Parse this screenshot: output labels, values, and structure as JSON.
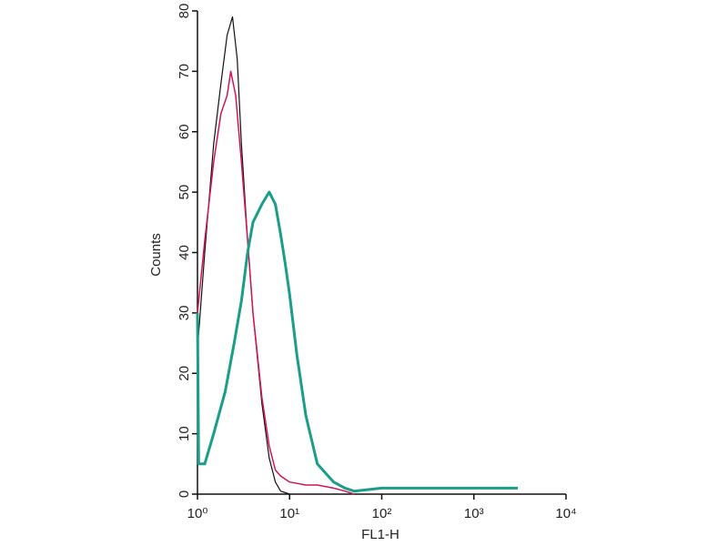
{
  "chart_data": {
    "type": "line",
    "x_label": "FL1-H",
    "y_label": "Counts",
    "xscale": "log",
    "xlim": [
      1,
      10000
    ],
    "xticks": [
      {
        "value": 1,
        "label": "10⁰"
      },
      {
        "value": 10,
        "label": "10¹"
      },
      {
        "value": 100,
        "label": "10²"
      },
      {
        "value": 1000,
        "label": "10³"
      },
      {
        "value": 10000,
        "label": "10⁴"
      }
    ],
    "ylim": [
      0,
      80
    ],
    "yticks": [
      0,
      10,
      20,
      30,
      40,
      50,
      60,
      70,
      80
    ],
    "series": [
      {
        "color": "#111111",
        "width": 1.2,
        "x": [
          1,
          1.2,
          1.5,
          1.8,
          2.1,
          2.4,
          2.7,
          3,
          3.5,
          4,
          5,
          6,
          7,
          8,
          10
        ],
        "values": [
          24,
          40,
          58,
          68,
          76,
          79,
          72,
          58,
          42,
          30,
          15,
          6,
          2,
          0.5,
          0
        ]
      },
      {
        "color": "#d4145a",
        "width": 1.5,
        "x": [
          1,
          1.2,
          1.5,
          1.8,
          2.1,
          2.3,
          2.6,
          3,
          3.5,
          4,
          5,
          6,
          7,
          8,
          10,
          15,
          20,
          30,
          40,
          50
        ],
        "values": [
          30,
          42,
          55,
          63,
          66,
          70,
          66,
          55,
          42,
          30,
          16,
          8,
          4,
          3,
          2,
          1.5,
          1.5,
          1,
          0.5,
          0
        ]
      },
      {
        "color": "#1a9e8a",
        "width": 3,
        "x": [
          1,
          1.03,
          1.2,
          1.5,
          2,
          2.5,
          3,
          3.5,
          4,
          5,
          6,
          7,
          8,
          9,
          10,
          12,
          15,
          20,
          30,
          40,
          50,
          100,
          1000,
          3000
        ],
        "values": [
          30,
          5,
          5,
          10,
          17,
          25,
          32,
          40,
          45,
          48,
          50,
          48,
          43,
          38,
          33,
          23,
          13,
          5,
          2,
          1,
          0.5,
          1,
          1,
          1
        ]
      }
    ]
  }
}
